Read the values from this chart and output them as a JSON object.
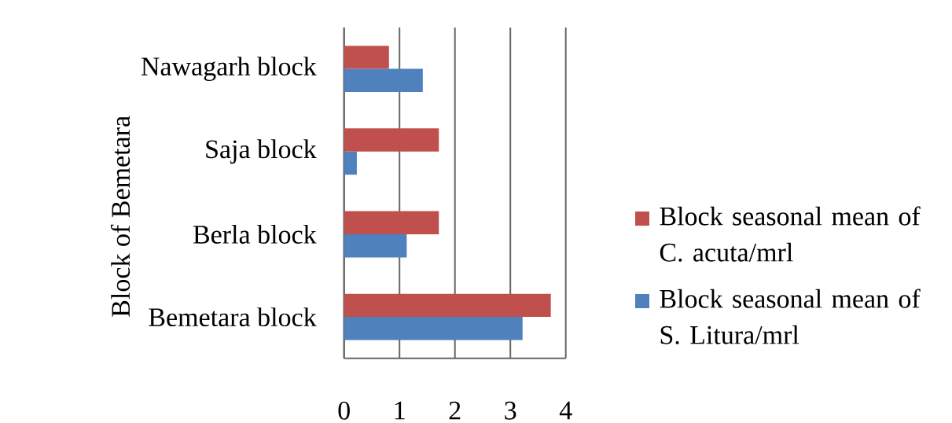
{
  "chart_data": {
    "type": "bar",
    "orientation": "horizontal",
    "ylabel": "Block of Bemetara",
    "categories": [
      "Nawagarh block",
      "Saja block",
      "Berla block",
      "Bemetara block"
    ],
    "series": [
      {
        "name": "Block seasonal mean of S.  Litura/mrl",
        "color": "#4f81bd",
        "values": [
          1.42,
          0.23,
          1.13,
          3.22
        ]
      },
      {
        "name": "Block seasonal mean of C. acuta/mrl",
        "color": "#c0504d",
        "values": [
          0.81,
          1.71,
          1.71,
          3.73
        ]
      }
    ],
    "xlim": [
      0,
      4
    ],
    "xticks": [
      0,
      1,
      2,
      3,
      4
    ],
    "grid": "x",
    "legend": "right"
  }
}
